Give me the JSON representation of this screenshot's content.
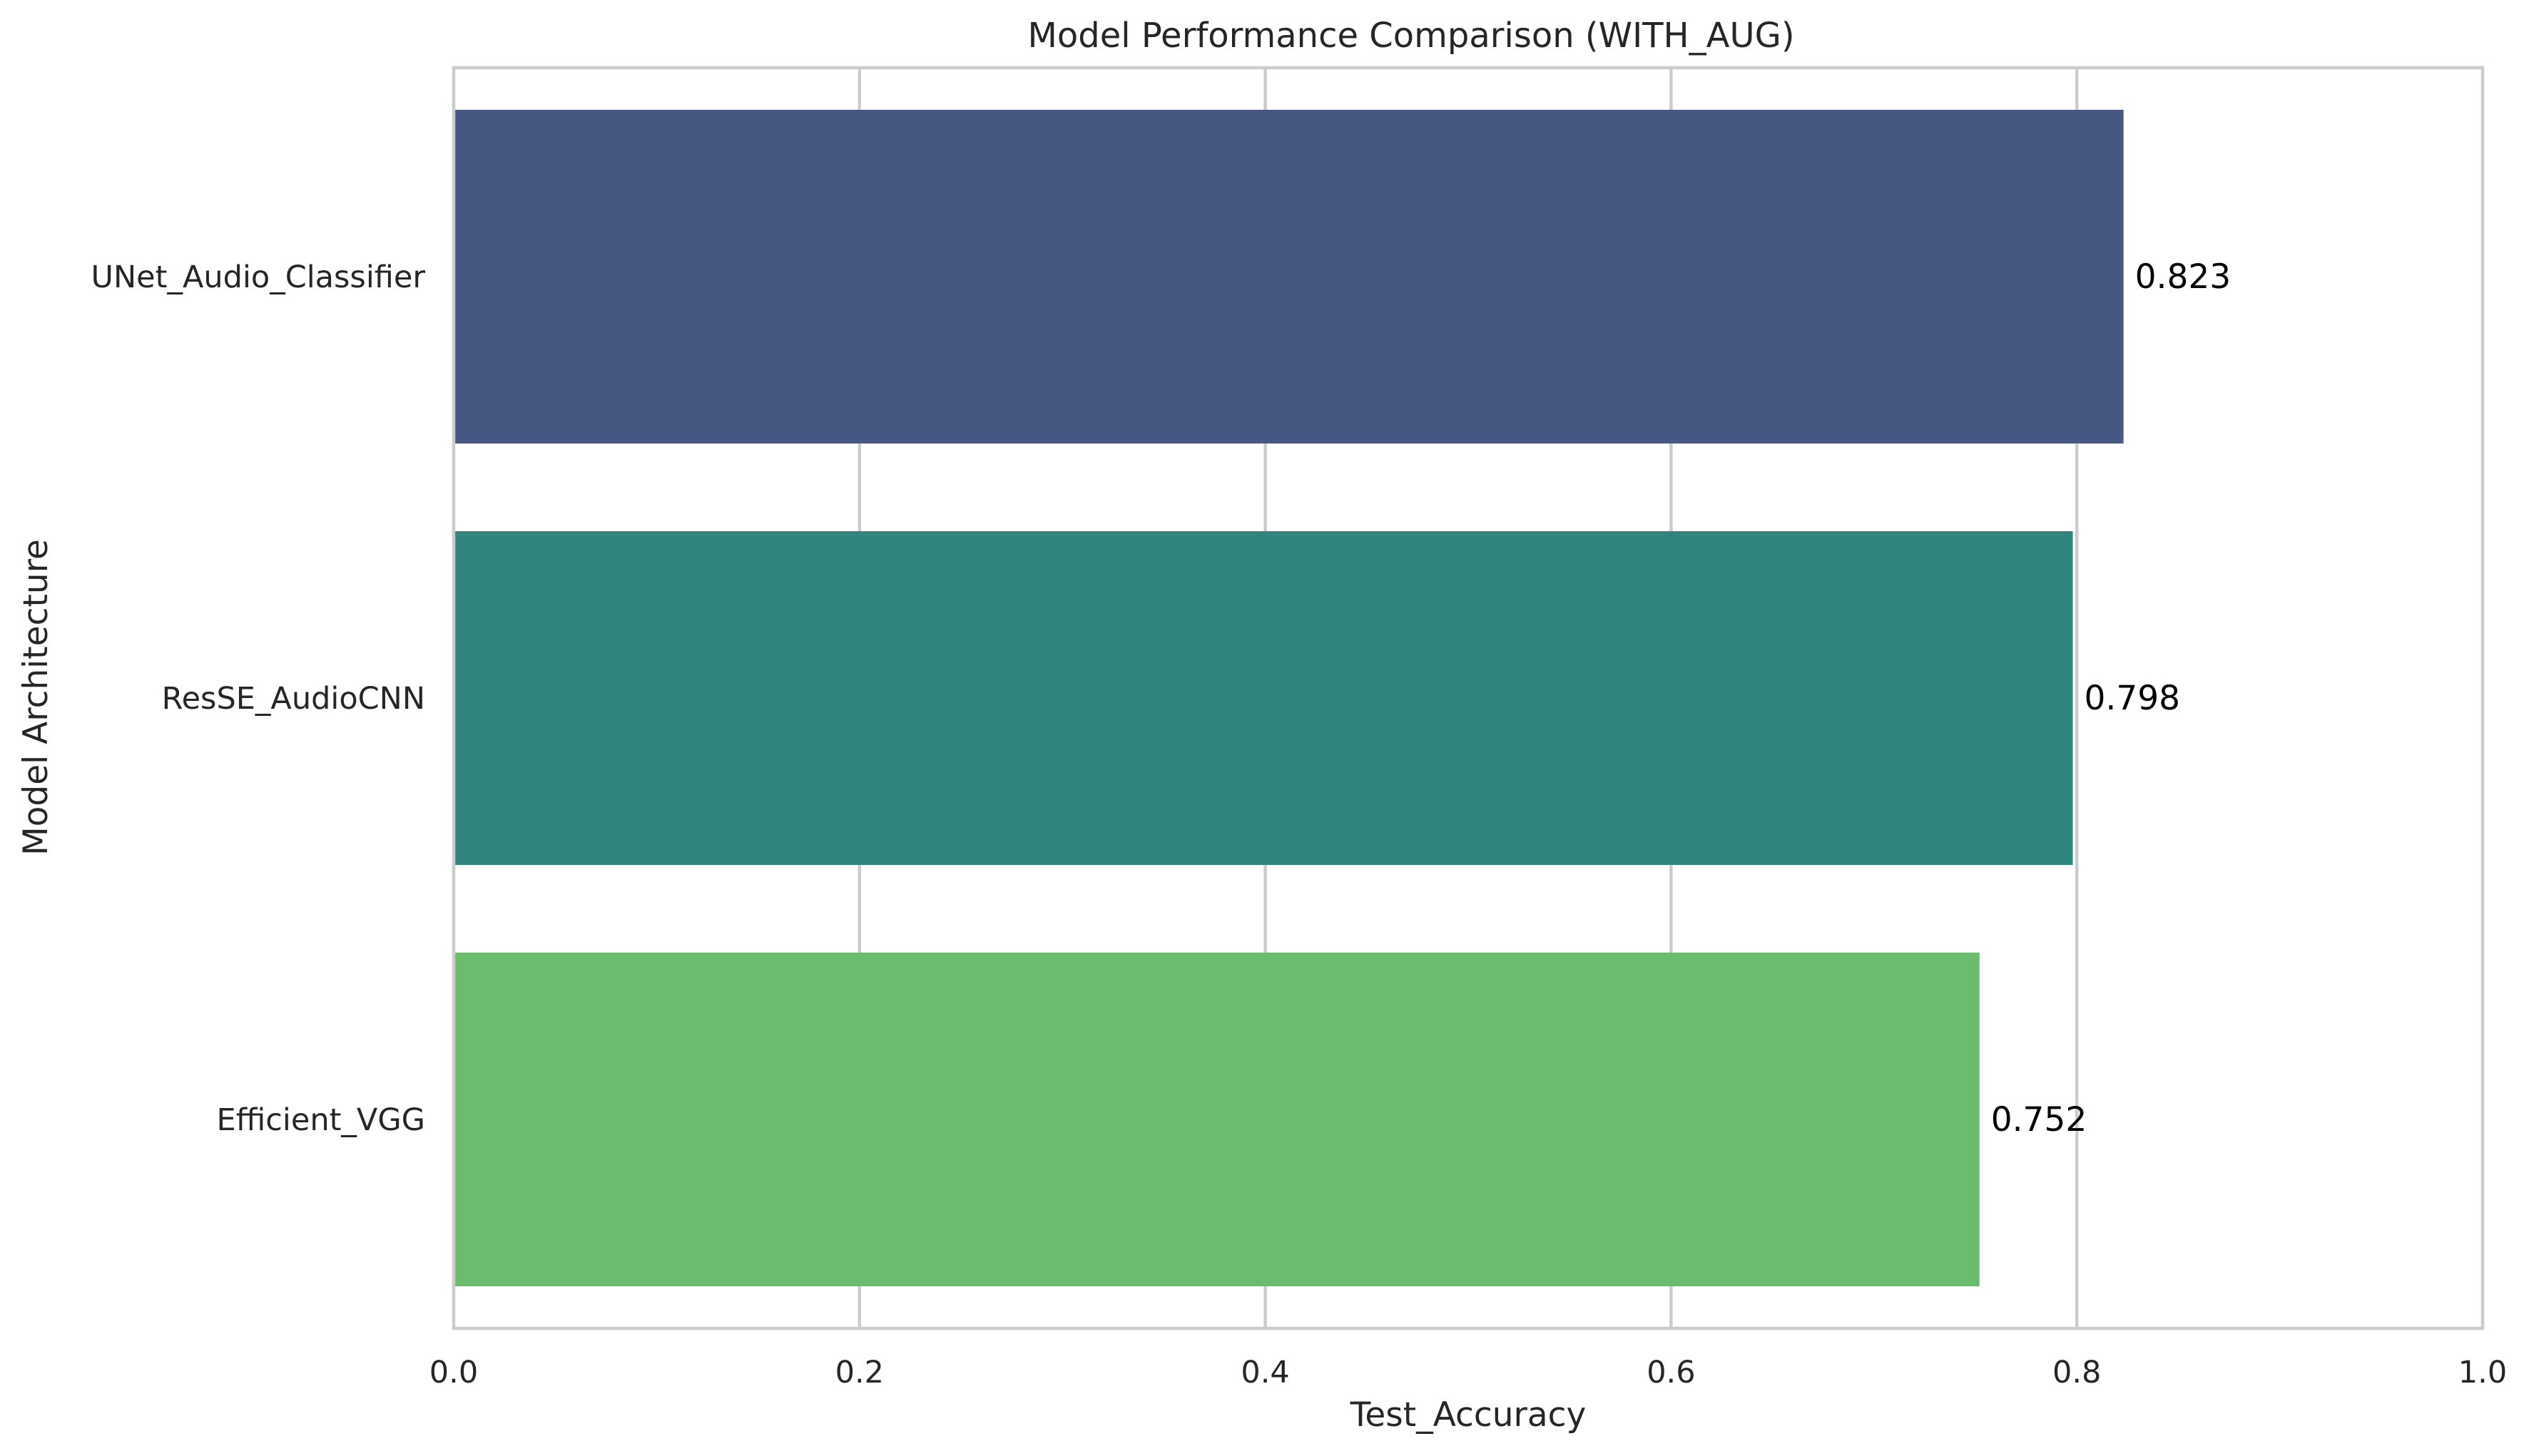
{
  "chart_data": {
    "type": "bar",
    "orientation": "horizontal",
    "title": "Model Performance Comparison (WITH_AUG)",
    "xlabel": "Test_Accuracy",
    "ylabel": "Model Architecture",
    "categories": [
      "UNet_Audio_Classifier",
      "ResSE_AudioCNN",
      "Efficient_VGG"
    ],
    "values": [
      0.823,
      0.798,
      0.752
    ],
    "value_labels": [
      "0.823",
      "0.798",
      "0.752"
    ],
    "colors": [
      "#465881",
      "#2f847d",
      "#6bbc6d"
    ],
    "xlim": [
      0.0,
      1.0
    ],
    "xticks": [
      0.0,
      0.2,
      0.4,
      0.6,
      0.8,
      1.0
    ],
    "xtick_labels": [
      "0.0",
      "0.2",
      "0.4",
      "0.6",
      "0.8",
      "1.0"
    ],
    "grid": true,
    "legend": false
  }
}
